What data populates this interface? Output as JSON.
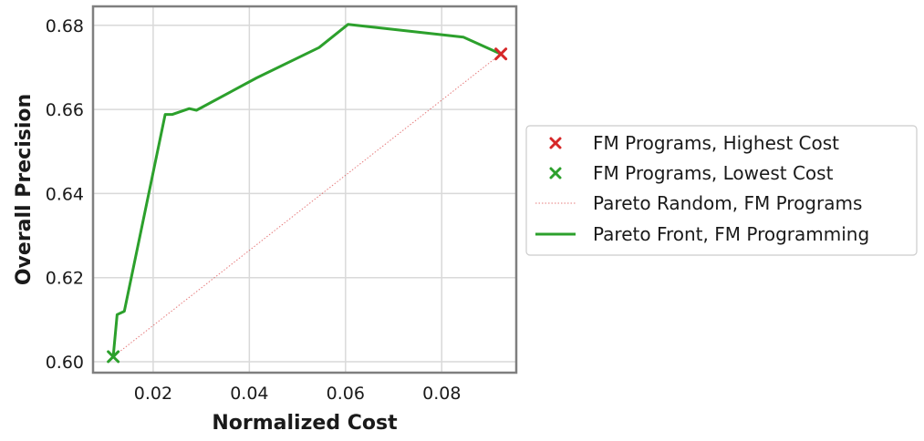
{
  "chart_data": {
    "type": "line",
    "xlabel": "Normalized Cost",
    "ylabel": "Overall Precision",
    "xlim": [
      0.0075,
      0.0955
    ],
    "ylim": [
      0.5974,
      0.6845
    ],
    "xticks": [
      0.02,
      0.04,
      0.06,
      0.08
    ],
    "xtick_labels": [
      "0.02",
      "0.04",
      "0.06",
      "0.08"
    ],
    "yticks": [
      0.6,
      0.62,
      0.64,
      0.66,
      0.68
    ],
    "ytick_labels": [
      "0.60",
      "0.62",
      "0.64",
      "0.66",
      "0.68"
    ],
    "grid": true,
    "legend_position": "right, outside plot",
    "series": [
      {
        "name": "FM Programs, Highest Cost",
        "kind": "marker-x",
        "color": "#d62728",
        "points": [
          [
            0.0923,
            0.6732
          ]
        ]
      },
      {
        "name": "FM Programs, Lowest Cost",
        "kind": "marker-x",
        "color": "#2ca02c",
        "points": [
          [
            0.0117,
            0.6012
          ]
        ]
      },
      {
        "name": "Pareto Random, FM Programs",
        "kind": "dotted-line",
        "color": "#d62728",
        "points": [
          [
            0.0117,
            0.6012
          ],
          [
            0.0923,
            0.6732
          ]
        ]
      },
      {
        "name": "Pareto Front, FM Programming",
        "kind": "line",
        "color": "#2ca02c",
        "points": [
          [
            0.0117,
            0.6012
          ],
          [
            0.0125,
            0.6112
          ],
          [
            0.014,
            0.612
          ],
          [
            0.0225,
            0.6588
          ],
          [
            0.024,
            0.6588
          ],
          [
            0.0275,
            0.6602
          ],
          [
            0.029,
            0.6598
          ],
          [
            0.0415,
            0.6675
          ],
          [
            0.0545,
            0.6747
          ],
          [
            0.0605,
            0.6802
          ],
          [
            0.0845,
            0.6772
          ],
          [
            0.0923,
            0.6732
          ]
        ]
      }
    ]
  }
}
